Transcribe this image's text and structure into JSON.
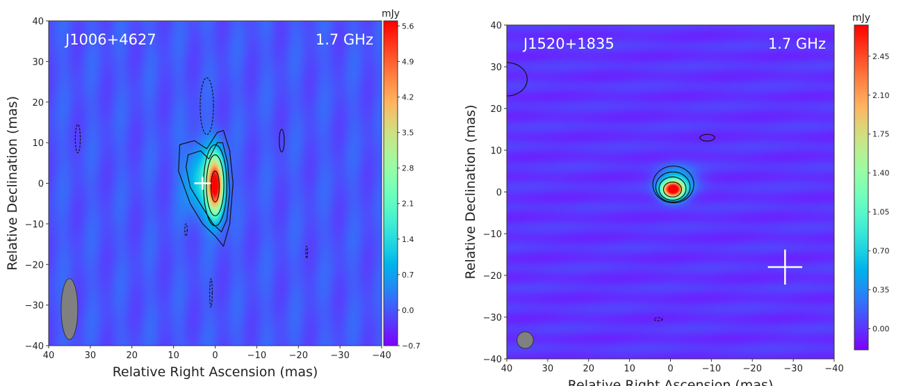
{
  "chart_data": [
    {
      "type": "heatmap",
      "source_label": "J1006+4627",
      "frequency_label": "1.7 GHz",
      "xlabel": "Relative Right Ascension (mas)",
      "ylabel": "Relative Declination (mas)",
      "xlim": [
        40,
        -40
      ],
      "ylim": [
        -40,
        40
      ],
      "xticks": [
        "40",
        "30",
        "20",
        "10",
        "0",
        "−10",
        "−20",
        "−30",
        "−40"
      ],
      "yticks": [
        "−40",
        "−30",
        "−20",
        "−10",
        "0",
        "10",
        "20",
        "30",
        "40"
      ],
      "colorbar": {
        "unit": "mJy",
        "range": [
          -0.7,
          5.7
        ],
        "colormap": "rainbow",
        "ticks": [
          "5.6",
          "4.9",
          "4.2",
          "3.5",
          "2.8",
          "2.1",
          "1.4",
          "0.7",
          "0.0",
          "−0.7"
        ],
        "tick_values": [
          5.6,
          4.9,
          4.2,
          3.5,
          2.8,
          2.1,
          1.4,
          0.7,
          0.0,
          -0.7
        ]
      },
      "background_stripes": "vertical",
      "components": [
        {
          "ra": 0,
          "dec": -0.5,
          "peak_mjy": 5.7,
          "sigma_ra": 1.4,
          "sigma_dec": 5
        },
        {
          "ra": 3.5,
          "dec": 1,
          "peak_mjy": 1.3,
          "sigma_ra": 2.8,
          "sigma_dec": 6
        }
      ],
      "contours_polygon": [
        [
          [
            8.5,
            9.5
          ],
          [
            5,
            10.5
          ],
          [
            2,
            8.5
          ],
          [
            -0.5,
            12.5
          ],
          [
            -2,
            13
          ],
          [
            -3.5,
            8
          ],
          [
            -4.3,
            0
          ],
          [
            -3.5,
            -10
          ],
          [
            -2,
            -15.5
          ],
          [
            0,
            -13
          ],
          [
            3,
            -10
          ],
          [
            6,
            -5
          ],
          [
            8.8,
            3
          ]
        ],
        [
          [
            6.5,
            7
          ],
          [
            3.5,
            8
          ],
          [
            1.5,
            6
          ],
          [
            -0.5,
            10
          ],
          [
            -1.8,
            10
          ],
          [
            -3,
            5
          ],
          [
            -3.5,
            -2
          ],
          [
            -2.8,
            -9
          ],
          [
            -1.5,
            -12
          ],
          [
            0.5,
            -10
          ],
          [
            3,
            -6
          ],
          [
            6,
            -1
          ],
          [
            7,
            4
          ]
        ]
      ],
      "contours_ellipse": [
        {
          "ra": 0,
          "dec": -0.5,
          "rx": 2.8,
          "ry": 10,
          "dashed": false
        },
        {
          "ra": 0,
          "dec": -0.5,
          "rx": 2.1,
          "ry": 7.5,
          "dashed": false
        },
        {
          "ra": 0,
          "dec": -0.8,
          "rx": 1.0,
          "ry": 3.8,
          "dashed": false
        },
        {
          "ra": 2,
          "dec": 19,
          "rx": 1.6,
          "ry": 7,
          "dashed": true
        },
        {
          "ra": 33,
          "dec": 11,
          "rx": 0.6,
          "ry": 3.5,
          "dashed": true
        },
        {
          "ra": -16,
          "dec": 10.5,
          "rx": 0.6,
          "ry": 2.8,
          "dashed": false
        },
        {
          "ra": 7,
          "dec": -11.5,
          "rx": 0.3,
          "ry": 1.5,
          "dashed": true
        },
        {
          "ra": 1,
          "dec": -27,
          "rx": 0.3,
          "ry": 3.5,
          "dashed": true
        },
        {
          "ra": -22,
          "dec": -17,
          "rx": 0.2,
          "ry": 1.5,
          "dashed": true
        }
      ],
      "beam": {
        "ra": 35,
        "dec": -31,
        "rx": 2,
        "ry": 7.5,
        "color": "#808080"
      },
      "cross": {
        "ra": 3,
        "dec": 0,
        "half_ra": 2,
        "half_dec": 1.6,
        "color": "#ffffff"
      }
    },
    {
      "type": "heatmap",
      "source_label": "J1520+1835",
      "frequency_label": "1.7 GHz",
      "xlabel": "Relative Right Ascension (mas)",
      "ylabel": "Relative Declination (mas)",
      "xlim": [
        40,
        -40
      ],
      "ylim": [
        -40,
        40
      ],
      "xticks": [
        "40",
        "30",
        "20",
        "10",
        "0",
        "−10",
        "−20",
        "−30",
        "−40"
      ],
      "yticks": [
        "−40",
        "−30",
        "−20",
        "−10",
        "0",
        "10",
        "20",
        "30",
        "40"
      ],
      "colorbar": {
        "unit": "mJy",
        "range": [
          -0.19,
          2.73
        ],
        "colormap": "rainbow",
        "ticks": [
          "2.45",
          "2.10",
          "1.75",
          "1.40",
          "1.05",
          "0.70",
          "0.35",
          "0.00"
        ],
        "tick_values": [
          2.45,
          2.1,
          1.75,
          1.4,
          1.05,
          0.7,
          0.35,
          0.0
        ]
      },
      "background_stripes": "horizontal",
      "components": [
        {
          "ra": -0.5,
          "dec": 0.6,
          "peak_mjy": 2.73,
          "sigma_ra": 1.9,
          "sigma_dec": 1.5
        },
        {
          "ra": -1.5,
          "dec": 2.5,
          "peak_mjy": 0.6,
          "sigma_ra": 3.2,
          "sigma_dec": 2.6
        }
      ],
      "contours_polygon": [],
      "contours_ellipse": [
        {
          "ra": -0.7,
          "dec": 1.8,
          "rx": 5,
          "ry": 4.4,
          "dashed": false
        },
        {
          "ra": -0.6,
          "dec": 1.2,
          "rx": 4.2,
          "ry": 3.6,
          "dashed": false
        },
        {
          "ra": -0.5,
          "dec": 0.8,
          "rx": 3.3,
          "ry": 2.8,
          "dashed": false
        },
        {
          "ra": -0.5,
          "dec": 0.6,
          "rx": 2.2,
          "ry": 1.8,
          "dashed": false
        },
        {
          "ra": -9,
          "dec": 13,
          "rx": 1.8,
          "ry": 0.8,
          "dashed": false
        },
        {
          "ra": 40,
          "dec": 27,
          "rx": 5,
          "ry": 4,
          "dashed": false
        },
        {
          "ra": 3,
          "dec": -30.5,
          "rx": 1,
          "ry": 0.4,
          "dashed": true
        }
      ],
      "beam": {
        "ra": 35.5,
        "dec": -35.5,
        "rx": 2,
        "ry": 2,
        "color": "#808080"
      },
      "cross": {
        "ra": -28,
        "dec": -18,
        "half_ra": 4.2,
        "half_dec": 4.2,
        "color": "#ffffff"
      }
    }
  ]
}
